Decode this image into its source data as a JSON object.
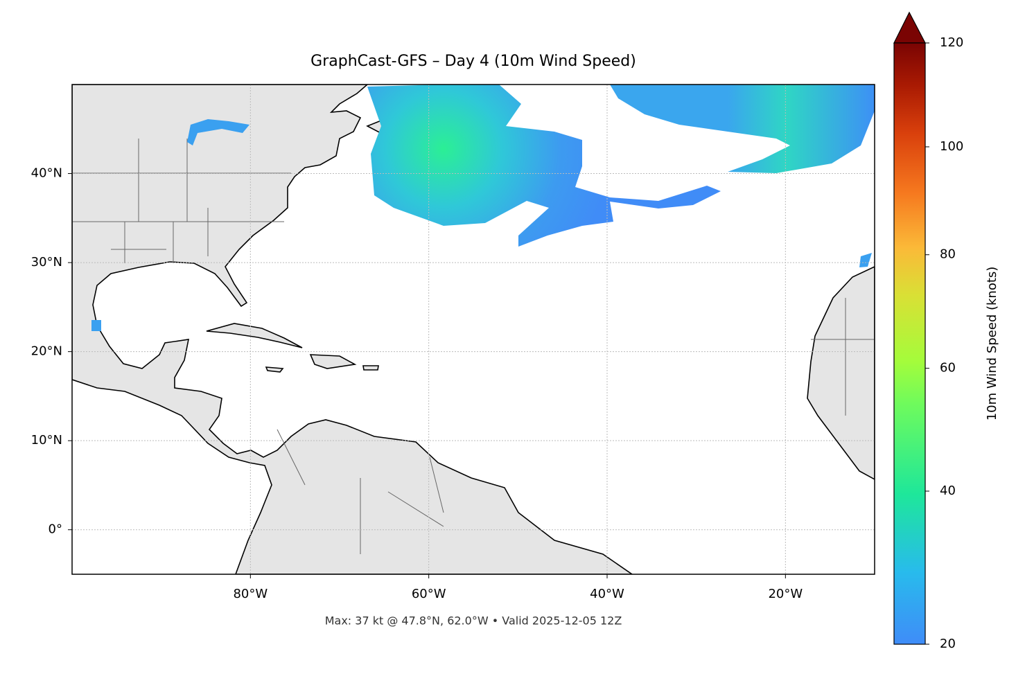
{
  "chart_data": {
    "type": "map",
    "title": "GraphCast-GFS – Day 4 (10m Wind Speed)",
    "footer": "Max: 37 kt @ 47.8°N, 62.0°W • Valid 2025-12-05 12Z",
    "xlim": [
      -100,
      -10
    ],
    "ylim": [
      -5,
      50
    ],
    "xticks": [
      {
        "value": -80,
        "label": "80°W"
      },
      {
        "value": -60,
        "label": "60°W"
      },
      {
        "value": -40,
        "label": "40°W"
      },
      {
        "value": -20,
        "label": "20°W"
      }
    ],
    "yticks": [
      {
        "value": 0,
        "label": "0°"
      },
      {
        "value": 10,
        "label": "10°N"
      },
      {
        "value": 20,
        "label": "20°N"
      },
      {
        "value": 30,
        "label": "30°N"
      },
      {
        "value": 40,
        "label": "40°N"
      }
    ],
    "grid": true,
    "colorbar": {
      "label": "10m Wind Speed (knots)",
      "lim": [
        20,
        120
      ],
      "ticks": [
        20,
        40,
        60,
        80,
        100,
        120
      ],
      "gamma": 0.85,
      "extend": "max"
    }
  }
}
